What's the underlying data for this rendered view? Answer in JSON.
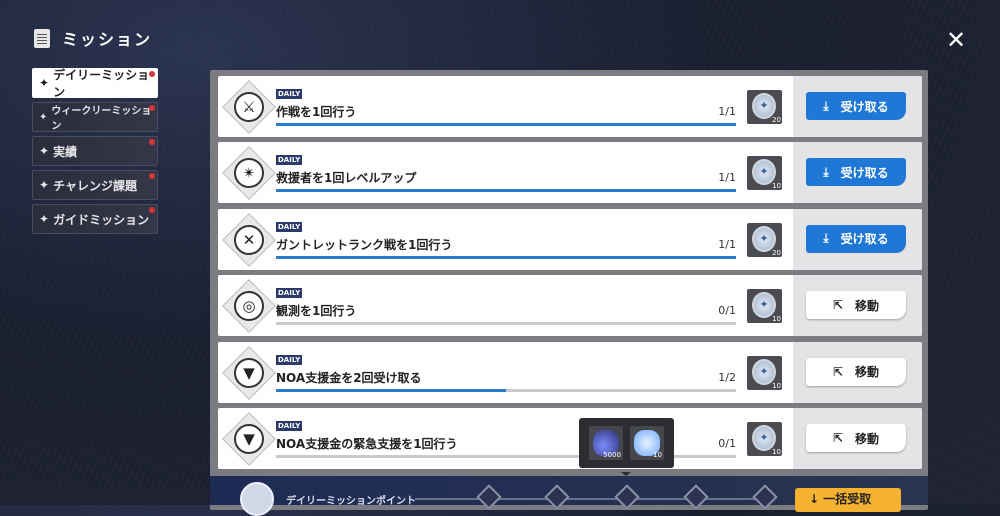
{
  "header": {
    "title": "ミッション",
    "close_icon": "close-icon"
  },
  "sidebar": {
    "items": [
      {
        "label": "デイリーミッション",
        "active": true,
        "notify": true
      },
      {
        "label": "ウィークリーミッション",
        "active": false,
        "notify": true
      },
      {
        "label": "実績",
        "active": false,
        "notify": true
      },
      {
        "label": "チャレンジ課題",
        "active": false,
        "notify": true
      },
      {
        "label": "ガイドミッション",
        "active": false,
        "notify": true
      }
    ]
  },
  "missions": [
    {
      "badge": "DAILY",
      "title": "作戦を1回行う",
      "progress": "1/1",
      "fraction": 1,
      "reward_qty": "20",
      "button": "受け取る",
      "type": "claim",
      "icon": "crossed-axes-icon"
    },
    {
      "badge": "DAILY",
      "title": "救援者を1回レベルアップ",
      "progress": "1/1",
      "fraction": 1,
      "reward_qty": "10",
      "button": "受け取る",
      "type": "claim",
      "icon": "compass-star-icon"
    },
    {
      "badge": "DAILY",
      "title": "ガントレットランク戦を1回行う",
      "progress": "1/1",
      "fraction": 1,
      "reward_qty": "20",
      "button": "受け取る",
      "type": "claim",
      "icon": "crossed-swords-icon"
    },
    {
      "badge": "DAILY",
      "title": "観測を1回行う",
      "progress": "0/1",
      "fraction": 0,
      "reward_qty": "10",
      "button": "移動",
      "type": "go",
      "icon": "observation-icon"
    },
    {
      "badge": "DAILY",
      "title": "NOA支援金を2回受け取る",
      "progress": "1/2",
      "fraction": 0.5,
      "reward_qty": "10",
      "button": "移動",
      "type": "go",
      "icon": "triangle-emblem-icon"
    },
    {
      "badge": "DAILY",
      "title": "NOA支援金の緊急支援を1回行う",
      "progress": "0/1",
      "fraction": 0,
      "reward_qty": "10",
      "button": "移動",
      "type": "go",
      "icon": "triangle-emblem-icon"
    }
  ],
  "tooltip": {
    "items": [
      {
        "icon": "potion-icon",
        "qty": "5000"
      },
      {
        "icon": "crystal-icon",
        "qty": "10"
      }
    ]
  },
  "points": {
    "label": "デイリーミッションポイント",
    "claim_all": "一括受取"
  },
  "colors": {
    "accent": "#1f77d6",
    "claim_all": "#f4b230",
    "notify": "#d9343a"
  }
}
